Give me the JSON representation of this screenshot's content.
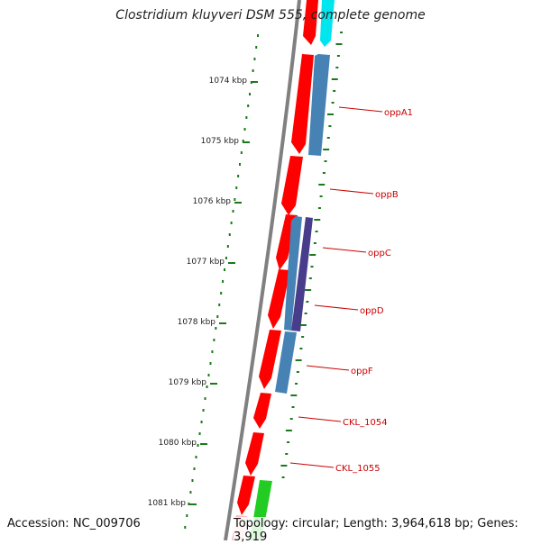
{
  "header": {
    "title": "Clostridium kluyveri DSM 555, complete genome"
  },
  "footer": {
    "accession": "Accession: NC_009706",
    "topology": "Topology: circular; Length: 3,964,618 bp; Genes: 3,919"
  },
  "colors": {
    "forward_cds": "#ff0000",
    "reverse_cds": "#4682b4",
    "reverse_cds_dark": "#483d8b",
    "rna": "#00e5ee",
    "other": "#22cc22",
    "backbone": "#808080",
    "gc_ticks": "#1a7a1a",
    "label": "#cc0000"
  },
  "ruler": [
    {
      "label": "1074 kbp"
    },
    {
      "label": "1075 kbp"
    },
    {
      "label": "1076 kbp"
    },
    {
      "label": "1077 kbp"
    },
    {
      "label": "1078 kbp"
    },
    {
      "label": "1079 kbp"
    },
    {
      "label": "1080 kbp"
    },
    {
      "label": "1081 kbp"
    }
  ],
  "gene_labels": [
    {
      "name": "oppA1"
    },
    {
      "name": "oppB"
    },
    {
      "name": "oppC"
    },
    {
      "name": "oppD"
    },
    {
      "name": "oppF"
    },
    {
      "name": "CKL_1054"
    },
    {
      "name": "CKL_1055"
    }
  ]
}
